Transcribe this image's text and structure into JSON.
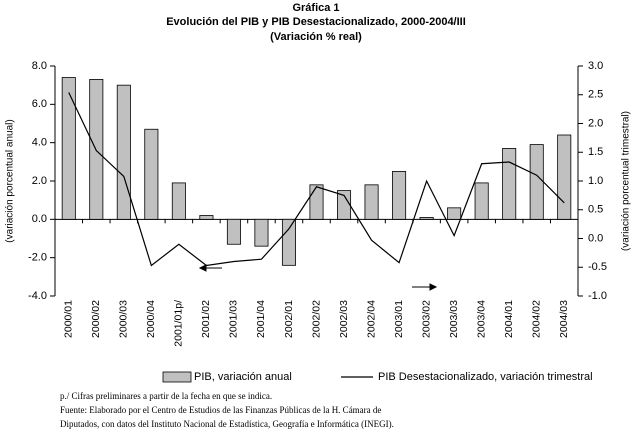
{
  "chart_data": {
    "type": "combo",
    "title": "Gráfica 1",
    "subtitle": "Evolución del PIB y PIB Desestacionalizado, 2000-2004/III",
    "subtitle2": "(Variación % real)",
    "y_label": "(variación porcentual anual)",
    "y2_label": "(variación porcentual trimestral)",
    "categories": [
      "2000/01",
      "2000/02",
      "2000/03",
      "2000/04",
      "2001/01p/",
      "2001/02",
      "2001/03",
      "2001/04",
      "2002/01",
      "2002/02",
      "2002/03",
      "2002/04",
      "2003/01",
      "2003/02",
      "2003/03",
      "2003/04",
      "2004/01",
      "2004/02",
      "2004/03"
    ],
    "series": [
      {
        "name": "PIB, variación anual",
        "type": "bar",
        "color": "#c0c0c0",
        "values": [
          7.4,
          7.3,
          7.0,
          4.7,
          1.9,
          0.2,
          -1.3,
          -1.4,
          -2.4,
          1.8,
          1.5,
          1.8,
          2.5,
          0.1,
          0.6,
          1.9,
          3.7,
          3.9,
          4.4
        ]
      },
      {
        "name": "PIB Desestacionalizado, variación trimestral",
        "type": "line",
        "axis": "y2",
        "color": "#000000",
        "values": [
          2.54,
          1.53,
          1.08,
          -0.47,
          -0.1,
          -0.47,
          -0.4,
          -0.36,
          0.17,
          0.9,
          0.75,
          -0.03,
          -0.42,
          1.0,
          0.05,
          1.3,
          1.33,
          1.1,
          0.62
        ]
      }
    ],
    "ylim": [
      -4,
      8
    ],
    "yticks": [
      {
        "value": -4,
        "label": "-4.0"
      },
      {
        "value": -2,
        "label": "-2.0"
      },
      {
        "value": 0,
        "label": "0.0"
      },
      {
        "value": 2,
        "label": "2.0"
      },
      {
        "value": 4,
        "label": "4.0"
      },
      {
        "value": 6,
        "label": "6.0"
      },
      {
        "value": 8,
        "label": "8.0"
      }
    ],
    "y2lim": [
      -1,
      3
    ],
    "y2ticks": [
      {
        "value": -1,
        "label": "-1.0"
      },
      {
        "value": -0.5,
        "label": "-0.5"
      },
      {
        "value": 0,
        "label": "0.0"
      },
      {
        "value": 0.5,
        "label": "0.5"
      },
      {
        "value": 1,
        "label": "1.0"
      },
      {
        "value": 1.5,
        "label": "1.5"
      },
      {
        "value": 2,
        "label": "2.0"
      },
      {
        "value": 2.5,
        "label": "2.5"
      },
      {
        "value": 3,
        "label": "3.0"
      }
    ],
    "grid": false,
    "notes": [
      "p./ Cifras preliminares a partir de la fecha en que se indica.",
      "Fuente: Elaborado por el Centro de Estudios de las Finanzas Públicas de la H. Cámara de",
      "Diputados, con datos del Instituto Nacional de Estadística, Geografía e Informática (INEGI)."
    ]
  }
}
